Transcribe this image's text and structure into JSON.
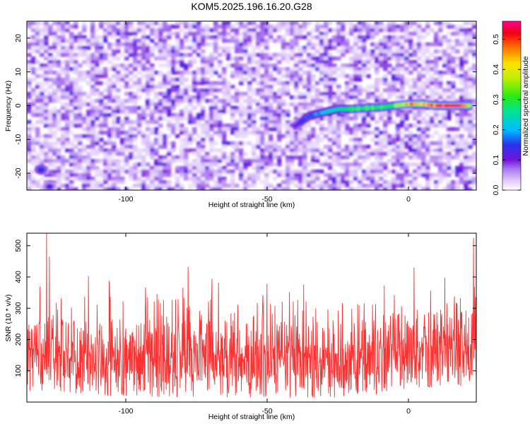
{
  "figure": {
    "title": "KOM5.2025.196.16.20.G28"
  },
  "chart_data": [
    {
      "type": "heatmap",
      "title": "KOM5.2025.196.16.20.G28",
      "xlabel": "Height of straight line (km)",
      "ylabel": "Frequency (Hz)",
      "xlim": [
        -135,
        24
      ],
      "ylim": [
        -25,
        25
      ],
      "xticks": [
        -100,
        -50,
        0
      ],
      "xtick_labels": [
        "-100",
        "-50",
        "0"
      ],
      "yticks": [
        -20,
        -10,
        0,
        10,
        20
      ],
      "ytick_labels": [
        "-20",
        "-10",
        "0",
        "10",
        "20"
      ],
      "colorbar": {
        "label": "Normalized spectral amplitude",
        "range": [
          0.0,
          0.56
        ],
        "ticks": [
          0.0,
          0.1,
          0.2,
          0.3,
          0.4,
          0.5
        ],
        "tick_labels": [
          "0.0",
          "0.1",
          "0.2",
          "0.3",
          "0.4",
          "0.5"
        ],
        "colormap": "rainbow (white-lavender-purple-blue-cyan-green-yellow-orange-red-magenta)"
      },
      "background_noise_amplitude": 0.05,
      "strong_feature": {
        "x": [
          -40,
          -35,
          -30,
          -25,
          -20,
          -15,
          -10,
          -5,
          0,
          5,
          10,
          15,
          20,
          22
        ],
        "y": [
          -6,
          -3,
          -2,
          -1,
          -1,
          -0.7,
          -0.5,
          0,
          0.5,
          0.5,
          0,
          0,
          0,
          0
        ],
        "amplitude": [
          0.12,
          0.16,
          0.2,
          0.25,
          0.28,
          0.3,
          0.28,
          0.32,
          0.45,
          0.42,
          0.48,
          0.55,
          0.5,
          0.35
        ]
      },
      "corner_blobs": [
        {
          "x": -130,
          "y": -19,
          "amplitude": 0.15
        },
        {
          "x": -127,
          "y": -24,
          "amplitude": 0.12
        }
      ]
    },
    {
      "type": "line",
      "xlabel": "Height of straight line (km)",
      "ylabel": "SNR (10 * v/v)",
      "xlim": [
        -135,
        24
      ],
      "ylim": [
        0,
        540
      ],
      "xticks": [
        -100,
        -50,
        0
      ],
      "xtick_labels": [
        "-100",
        "-50",
        "0"
      ],
      "yticks": [
        100,
        200,
        300,
        400,
        500
      ],
      "ytick_labels": [
        "100",
        "200",
        "300",
        "400",
        "500"
      ],
      "color": "#ff3030",
      "baseline_x": [
        -135,
        -110,
        -80,
        -50,
        -30,
        -10,
        0,
        10,
        24
      ],
      "baseline_y": [
        150,
        140,
        135,
        130,
        130,
        145,
        155,
        160,
        165
      ],
      "peaks": [
        {
          "x": -128,
          "y": 540
        },
        {
          "x": -127,
          "y": 465
        },
        {
          "x": -78,
          "y": 432
        },
        {
          "x": 2,
          "y": 430
        },
        {
          "x": 23,
          "y": 525
        }
      ]
    }
  ]
}
